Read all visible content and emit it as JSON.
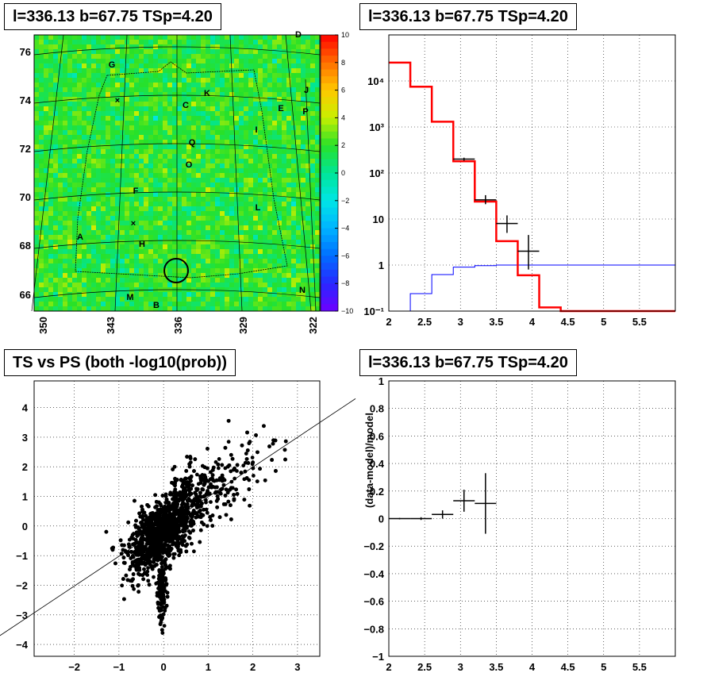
{
  "titles": {
    "map": "l=336.13 b=67.75 TSp=4.20",
    "hist": "l=336.13 b=67.75 TSp=4.20",
    "scatter": "TS vs PS (both -log10(prob))",
    "resid": "l=336.13 b=67.75 TSp=4.20"
  },
  "colors": {
    "data": "#000000",
    "model": "#ff0000",
    "background": "#0000ff",
    "map_base": "#33dd33"
  },
  "chart_data": [
    {
      "type": "heatmap",
      "x_ticks": [
        "350",
        "343",
        "336",
        "329",
        "322"
      ],
      "y_ticks": [
        "76",
        "74",
        "72",
        "70",
        "68",
        "66"
      ],
      "colorbar_ticks": [
        "10",
        "8",
        "6",
        "4",
        "2",
        "0",
        "−2",
        "−4",
        "−6",
        "−8",
        "−10"
      ],
      "zlim": [
        -10,
        10
      ],
      "region_labels": [
        "D",
        "G",
        "K",
        "C",
        "E",
        "J",
        "P",
        "I",
        "Q",
        "O",
        "F",
        "L",
        "A",
        "H",
        "M",
        "B",
        "N"
      ]
    },
    {
      "type": "line",
      "scale_y": "log",
      "xlim": [
        2,
        6
      ],
      "ylim": [
        0.1,
        100000
      ],
      "x_ticks": [
        "2",
        "2.5",
        "3",
        "3.5",
        "4",
        "4.5",
        "5",
        "5.5"
      ],
      "y_ticks": [
        "10⁻¹",
        "1",
        "10",
        "10²",
        "10³",
        "10⁴"
      ],
      "bin_edges": [
        2.0,
        2.3,
        2.6,
        2.9,
        3.2,
        3.5,
        3.8,
        4.1,
        4.4,
        6.0
      ],
      "series": [
        {
          "values": [
            25000,
            7500,
            1300,
            180,
            24,
            3.3,
            0.6,
            0.12,
            0.1
          ]
        },
        {
          "values": [
            0.08,
            0.24,
            0.62,
            0.9,
            0.97,
            1.0,
            1.0,
            1.0,
            1.0
          ]
        }
      ],
      "data_points": [
        {
          "x": 3.05,
          "y": 200,
          "xerr": 0.15,
          "ylo": 185,
          "yhi": 215
        },
        {
          "x": 3.35,
          "y": 26,
          "xerr": 0.15,
          "ylo": 21,
          "yhi": 33
        },
        {
          "x": 3.65,
          "y": 8,
          "xerr": 0.15,
          "ylo": 5,
          "yhi": 12
        },
        {
          "x": 3.95,
          "y": 2,
          "xerr": 0.15,
          "ylo": 0.8,
          "yhi": 4.5
        }
      ]
    },
    {
      "type": "scatter",
      "xlim": [
        -2.9,
        3.5
      ],
      "ylim": [
        -4.4,
        4.9
      ],
      "x_ticks": [
        "−2",
        "−1",
        "0",
        "1",
        "2",
        "3"
      ],
      "y_ticks": [
        "−4",
        "−3",
        "−2",
        "−1",
        "0",
        "1",
        "2",
        "3",
        "4"
      ],
      "fit_line": {
        "slope": 1.0,
        "intercept": 0.0
      }
    },
    {
      "type": "scatter",
      "xlim": [
        2,
        6
      ],
      "ylim": [
        -1,
        1
      ],
      "ylabel": "(data-model)/model",
      "x_ticks": [
        "2",
        "2.5",
        "3",
        "3.5",
        "4",
        "4.5",
        "5",
        "5.5"
      ],
      "y_ticks": [
        "−1",
        "−0.8",
        "−0.6",
        "−0.4",
        "−0.2",
        "0",
        "0.2",
        "0.4",
        "0.6",
        "0.8",
        "1"
      ],
      "points": [
        {
          "x": 2.15,
          "y": 0.0,
          "xerr": 0.15,
          "yerr": 0.005
        },
        {
          "x": 2.45,
          "y": 0.0,
          "xerr": 0.15,
          "yerr": 0.01
        },
        {
          "x": 2.75,
          "y": 0.03,
          "xerr": 0.15,
          "yerr": 0.03
        },
        {
          "x": 3.05,
          "y": 0.13,
          "xerr": 0.15,
          "yerr": 0.08
        },
        {
          "x": 3.35,
          "y": 0.11,
          "xerr": 0.15,
          "yerr": 0.22
        }
      ]
    }
  ]
}
